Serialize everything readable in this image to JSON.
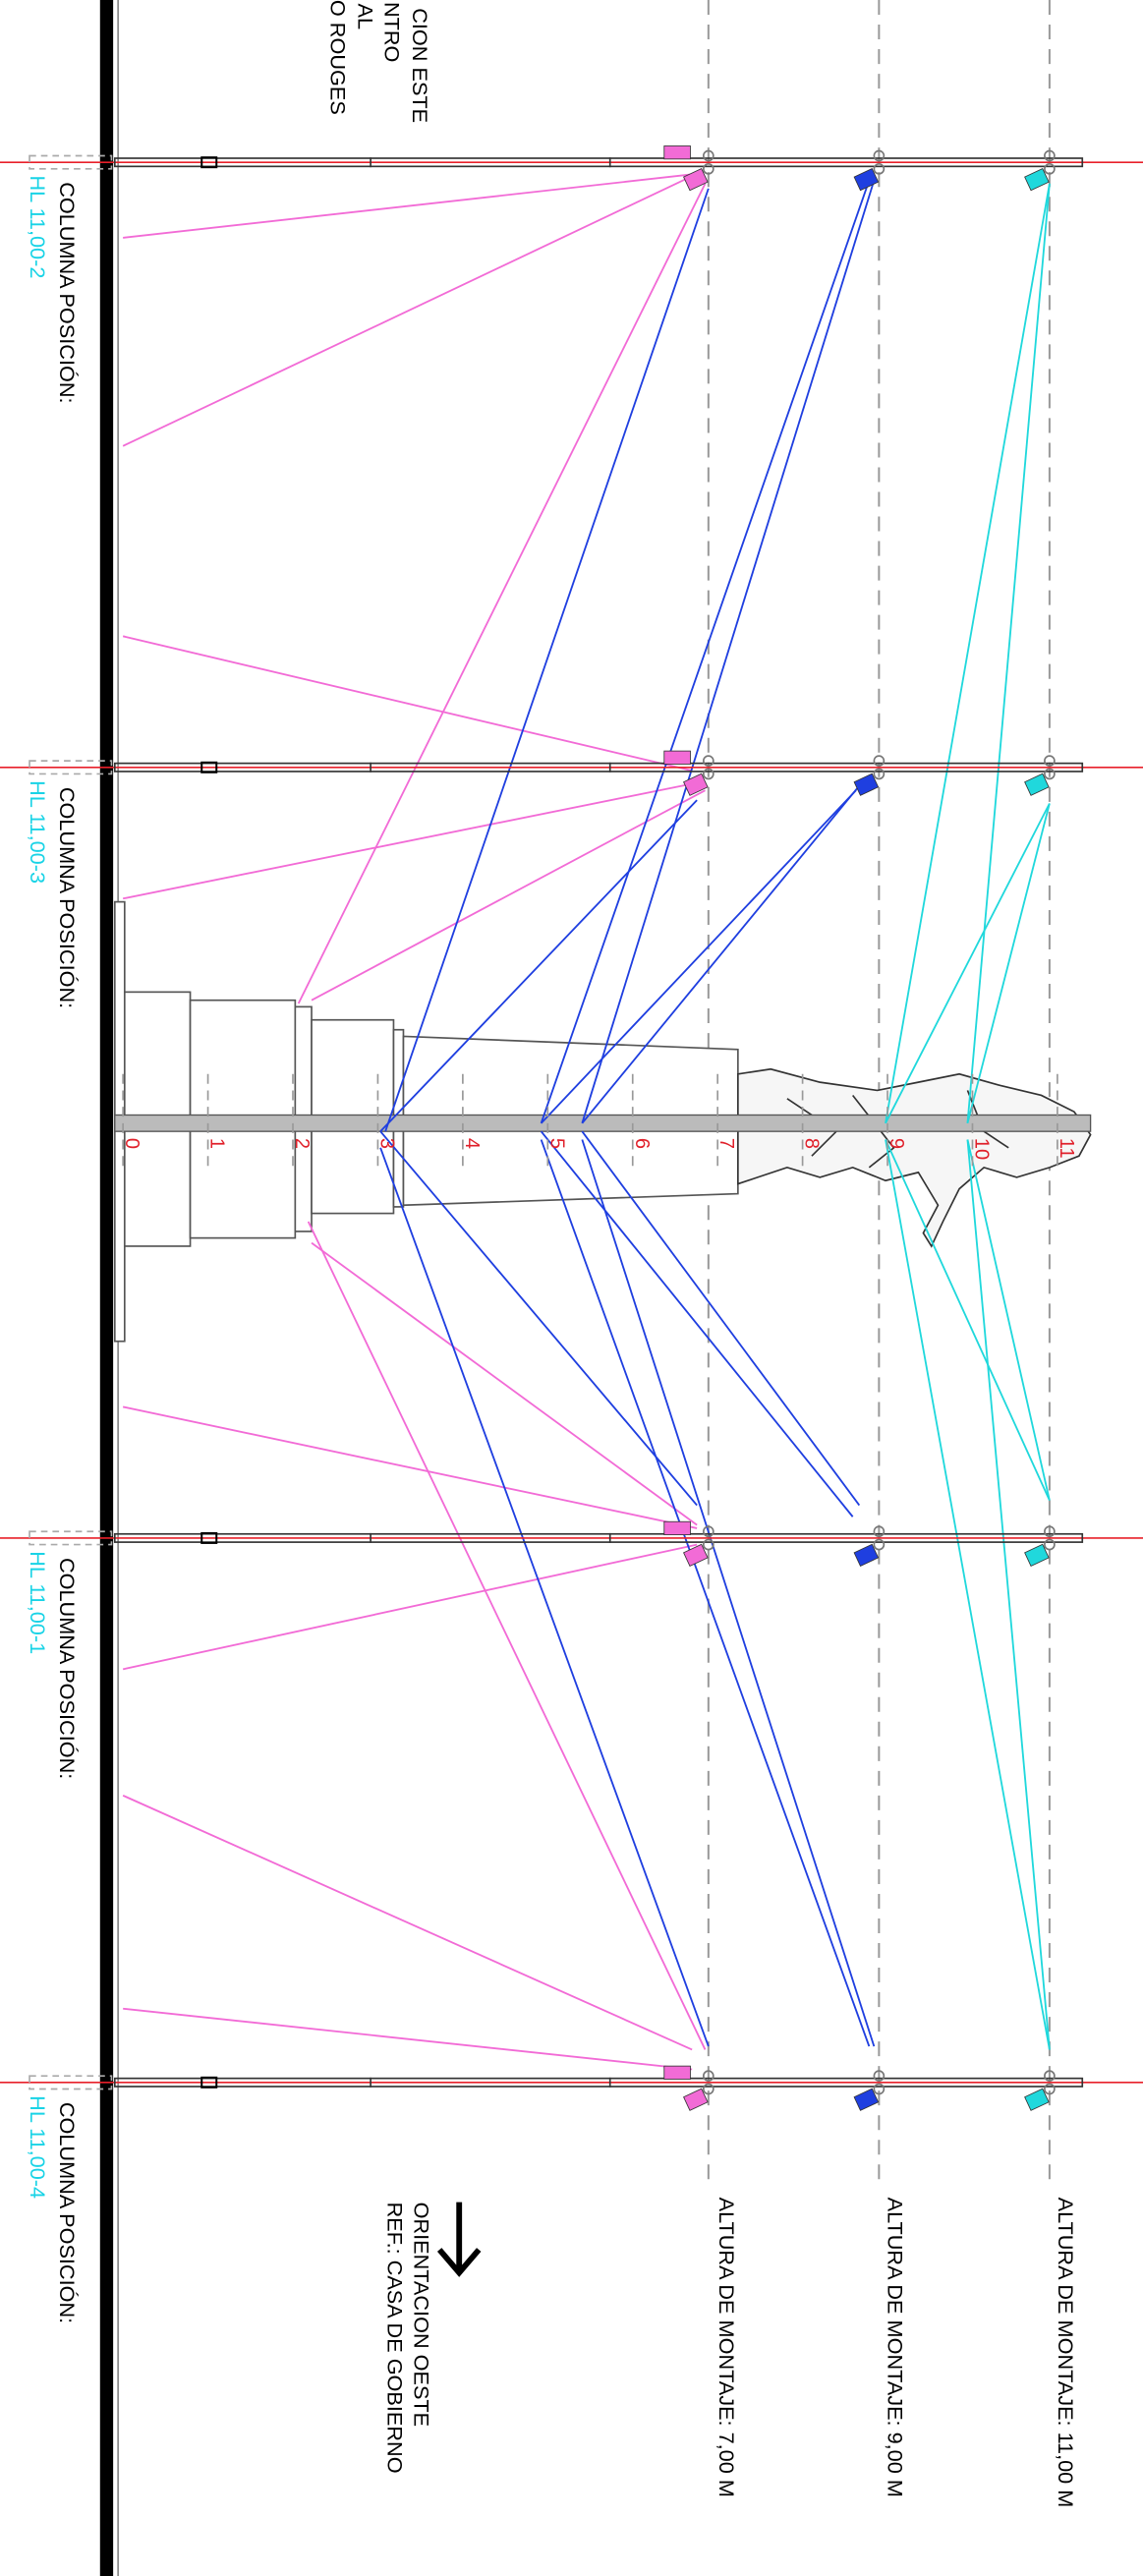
{
  "header_fragments": [
    "CION ESTE",
    "NTRO",
    "AL",
    "O ROUGES"
  ],
  "columns": [
    {
      "title": "COLUMNA POSICIÓN:",
      "id": "HL 11,00-2"
    },
    {
      "title": "COLUMNA POSICIÓN:",
      "id": "HL 11,00-3"
    },
    {
      "title": "COLUMNA POSICIÓN:",
      "id": "HL 11,00-1"
    },
    {
      "title": "COLUMNA POSICIÓN:",
      "id": "HL 11,00-4"
    }
  ],
  "scale_marks": [
    0,
    1,
    2,
    3,
    4,
    5,
    6,
    7,
    8,
    9,
    10,
    11
  ],
  "mounting_heights": [
    "ALTURA DE MONTAJE: 7,00 M",
    "ALTURA DE MONTAJE: 9,00 M",
    "ALTURA DE MONTAJE: 11,00 M"
  ],
  "orientation": {
    "title": "ORIENTACION OESTE",
    "ref": "REF.: CASA DE GOBIERNO"
  }
}
